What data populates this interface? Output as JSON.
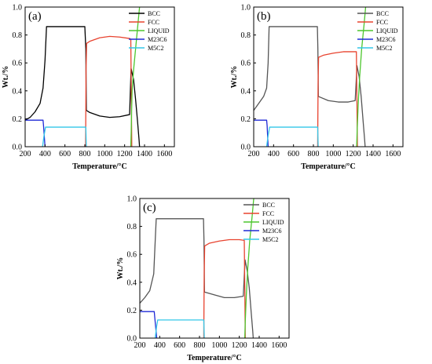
{
  "chart_data": [
    {
      "type": "line",
      "panel_label": "(a)",
      "xlabel": "Temperature/°C",
      "ylabel": "Wt./%",
      "xlim": [
        200,
        1700
      ],
      "ylim": [
        0,
        1.0
      ],
      "xticks": [
        "200",
        "400",
        "600",
        "800",
        "1000",
        "1200",
        "1400",
        "1600"
      ],
      "yticks": [
        "0.0",
        "0.2",
        "0.4",
        "0.6",
        "0.8",
        "1.0"
      ],
      "legend_position": "top-right",
      "series": [
        {
          "name": "BCC",
          "color": "#000000",
          "points": [
            [
              200,
              0.19
            ],
            [
              250,
              0.21
            ],
            [
              300,
              0.25
            ],
            [
              350,
              0.31
            ],
            [
              380,
              0.42
            ],
            [
              400,
              0.62
            ],
            [
              415,
              0.86
            ],
            [
              500,
              0.86
            ],
            [
              600,
              0.86
            ],
            [
              700,
              0.86
            ],
            [
              790,
              0.86
            ],
            [
              800,
              0.86
            ],
            [
              810,
              0.7
            ],
            [
              815,
              0.26
            ],
            [
              850,
              0.245
            ],
            [
              950,
              0.22
            ],
            [
              1050,
              0.21
            ],
            [
              1150,
              0.215
            ],
            [
              1250,
              0.23
            ],
            [
              1265,
              0.56
            ],
            [
              1290,
              0.48
            ],
            [
              1310,
              0.34
            ],
            [
              1330,
              0.18
            ],
            [
              1345,
              0.05
            ],
            [
              1350,
              0.0
            ]
          ]
        },
        {
          "name": "FCC",
          "color": "#e8432f",
          "points": [
            [
              808,
              0.0
            ],
            [
              812,
              0.55
            ],
            [
              818,
              0.74
            ],
            [
              850,
              0.755
            ],
            [
              950,
              0.78
            ],
            [
              1050,
              0.79
            ],
            [
              1150,
              0.785
            ],
            [
              1250,
              0.775
            ],
            [
              1262,
              0.77
            ],
            [
              1268,
              0.3
            ],
            [
              1272,
              0.0
            ]
          ]
        },
        {
          "name": "LIQUID",
          "color": "#4dc62e",
          "points": [
            [
              1262,
              0.0
            ],
            [
              1266,
              0.1
            ],
            [
              1270,
              0.25
            ],
            [
              1275,
              0.4
            ],
            [
              1290,
              0.55
            ],
            [
              1310,
              0.7
            ],
            [
              1330,
              0.85
            ],
            [
              1350,
              1.0
            ]
          ]
        },
        {
          "name": "M23C6",
          "color": "#1f2ad6",
          "points": [
            [
              200,
              0.19
            ],
            [
              380,
              0.19
            ],
            [
              385,
              0.15
            ],
            [
              400,
              0.0
            ]
          ]
        },
        {
          "name": "M5C2",
          "color": "#33c7e8",
          "points": [
            [
              375,
              0.0
            ],
            [
              390,
              0.08
            ],
            [
              405,
              0.14
            ],
            [
              500,
              0.14
            ],
            [
              600,
              0.14
            ],
            [
              700,
              0.14
            ],
            [
              800,
              0.14
            ],
            [
              810,
              0.14
            ],
            [
              815,
              0.0
            ]
          ]
        }
      ]
    },
    {
      "type": "line",
      "panel_label": "(b)",
      "xlabel": "Temperature/°C",
      "ylabel": "Wt./%",
      "xlim": [
        200,
        1700
      ],
      "ylim": [
        0,
        1.0
      ],
      "xticks": [
        "200",
        "400",
        "600",
        "800",
        "1000",
        "1200",
        "1400",
        "1600"
      ],
      "yticks": [
        "0.0",
        "0.2",
        "0.4",
        "0.6",
        "0.8",
        "1.0"
      ],
      "legend_position": "top-right",
      "series": [
        {
          "name": "BCC",
          "color": "#555555",
          "points": [
            [
              200,
              0.26
            ],
            [
              250,
              0.31
            ],
            [
              300,
              0.36
            ],
            [
              330,
              0.42
            ],
            [
              345,
              0.6
            ],
            [
              355,
              0.86
            ],
            [
              500,
              0.86
            ],
            [
              600,
              0.86
            ],
            [
              700,
              0.86
            ],
            [
              800,
              0.86
            ],
            [
              840,
              0.86
            ],
            [
              845,
              0.7
            ],
            [
              850,
              0.36
            ],
            [
              950,
              0.33
            ],
            [
              1050,
              0.32
            ],
            [
              1150,
              0.32
            ],
            [
              1220,
              0.33
            ],
            [
              1238,
              0.58
            ],
            [
              1260,
              0.5
            ],
            [
              1280,
              0.36
            ],
            [
              1300,
              0.18
            ],
            [
              1315,
              0.05
            ],
            [
              1320,
              0.0
            ]
          ]
        },
        {
          "name": "FCC",
          "color": "#e8432f",
          "points": [
            [
              843,
              0.0
            ],
            [
              847,
              0.45
            ],
            [
              852,
              0.64
            ],
            [
              900,
              0.655
            ],
            [
              1000,
              0.67
            ],
            [
              1100,
              0.68
            ],
            [
              1200,
              0.68
            ],
            [
              1232,
              0.68
            ],
            [
              1238,
              0.3
            ],
            [
              1242,
              0.0
            ]
          ]
        },
        {
          "name": "LIQUID",
          "color": "#4dc62e",
          "points": [
            [
              1235,
              0.0
            ],
            [
              1240,
              0.12
            ],
            [
              1250,
              0.3
            ],
            [
              1265,
              0.5
            ],
            [
              1285,
              0.7
            ],
            [
              1310,
              0.88
            ],
            [
              1325,
              1.0
            ]
          ]
        },
        {
          "name": "M23C6",
          "color": "#1f2ad6",
          "points": [
            [
              200,
              0.19
            ],
            [
              330,
              0.19
            ],
            [
              335,
              0.15
            ],
            [
              345,
              0.0
            ]
          ]
        },
        {
          "name": "M5C2",
          "color": "#33c7e8",
          "points": [
            [
              330,
              0.0
            ],
            [
              345,
              0.08
            ],
            [
              360,
              0.14
            ],
            [
              500,
              0.14
            ],
            [
              600,
              0.14
            ],
            [
              700,
              0.14
            ],
            [
              800,
              0.14
            ],
            [
              843,
              0.14
            ],
            [
              848,
              0.0
            ]
          ]
        }
      ]
    },
    {
      "type": "line",
      "panel_label": "(c)",
      "xlabel": "Temperature/°C",
      "ylabel": "Wt./%",
      "xlim": [
        200,
        1700
      ],
      "ylim": [
        0,
        1.0
      ],
      "xticks": [
        "200",
        "400",
        "600",
        "800",
        "1000",
        "1200",
        "1400",
        "1600"
      ],
      "yticks": [
        "0.0",
        "0.2",
        "0.4",
        "0.6",
        "0.8",
        "1.0"
      ],
      "legend_position": "top-right",
      "series": [
        {
          "name": "BCC",
          "color": "#555555",
          "points": [
            [
              200,
              0.25
            ],
            [
              250,
              0.29
            ],
            [
              300,
              0.34
            ],
            [
              340,
              0.46
            ],
            [
              355,
              0.7
            ],
            [
              365,
              0.855
            ],
            [
              500,
              0.855
            ],
            [
              600,
              0.855
            ],
            [
              700,
              0.855
            ],
            [
              800,
              0.855
            ],
            [
              840,
              0.855
            ],
            [
              845,
              0.7
            ],
            [
              850,
              0.33
            ],
            [
              950,
              0.31
            ],
            [
              1050,
              0.29
            ],
            [
              1150,
              0.29
            ],
            [
              1240,
              0.3
            ],
            [
              1258,
              0.56
            ],
            [
              1280,
              0.48
            ],
            [
              1300,
              0.36
            ],
            [
              1320,
              0.18
            ],
            [
              1335,
              0.05
            ],
            [
              1340,
              0.0
            ]
          ]
        },
        {
          "name": "FCC",
          "color": "#e8432f",
          "points": [
            [
              843,
              0.0
            ],
            [
              847,
              0.45
            ],
            [
              852,
              0.66
            ],
            [
              900,
              0.68
            ],
            [
              1000,
              0.695
            ],
            [
              1100,
              0.705
            ],
            [
              1200,
              0.705
            ],
            [
              1250,
              0.7
            ],
            [
              1256,
              0.3
            ],
            [
              1260,
              0.0
            ]
          ]
        },
        {
          "name": "LIQUID",
          "color": "#4dc62e",
          "points": [
            [
              1255,
              0.0
            ],
            [
              1260,
              0.12
            ],
            [
              1270,
              0.3
            ],
            [
              1285,
              0.5
            ],
            [
              1305,
              0.7
            ],
            [
              1330,
              0.88
            ],
            [
              1345,
              1.0
            ]
          ]
        },
        {
          "name": "M23C6",
          "color": "#1f2ad6",
          "points": [
            [
              200,
              0.19
            ],
            [
              345,
              0.19
            ],
            [
              350,
              0.15
            ],
            [
              370,
              0.0
            ]
          ]
        },
        {
          "name": "M5C2",
          "color": "#33c7e8",
          "points": [
            [
              355,
              0.0
            ],
            [
              368,
              0.08
            ],
            [
              380,
              0.13
            ],
            [
              500,
              0.13
            ],
            [
              600,
              0.13
            ],
            [
              700,
              0.13
            ],
            [
              800,
              0.13
            ],
            [
              843,
              0.13
            ],
            [
              848,
              0.0
            ]
          ]
        }
      ]
    }
  ]
}
